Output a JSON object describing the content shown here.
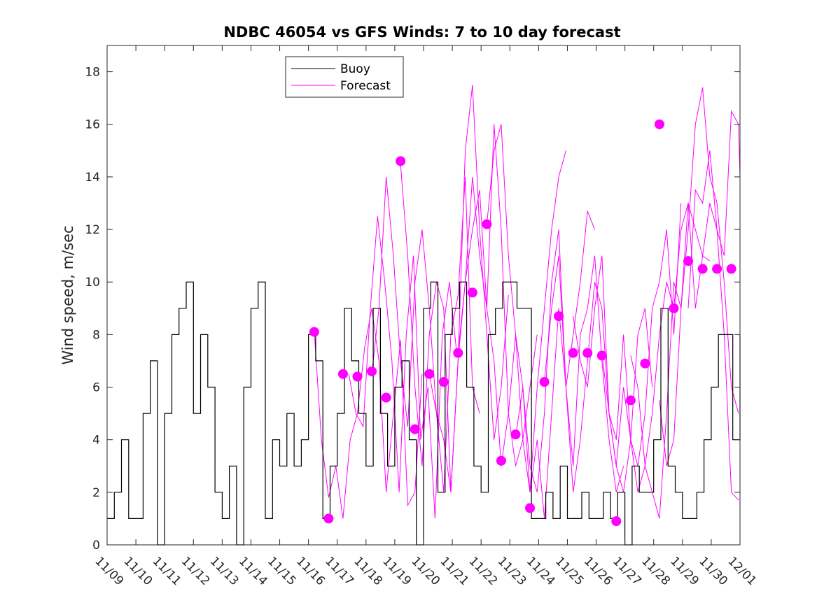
{
  "chart_data": {
    "type": "line",
    "title": "NDBC 46054 vs GFS Winds: 7 to 10 day forecast",
    "xlabel": "",
    "ylabel": "Wind speed, m/sec",
    "xlim": [
      0,
      22
    ],
    "ylim": [
      0,
      19
    ],
    "grid": false,
    "legend_position": "top-left",
    "x_tick_values": [
      0,
      1,
      2,
      3,
      4,
      5,
      6,
      7,
      8,
      9,
      10,
      11,
      12,
      13,
      14,
      15,
      16,
      17,
      18,
      19,
      20,
      21,
      22
    ],
    "x_tick_labels": [
      "11/09",
      "11/10",
      "11/11",
      "11/12",
      "11/13",
      "11/14",
      "11/15",
      "11/16",
      "11/17",
      "11/18",
      "11/19",
      "11/20",
      "11/21",
      "11/22",
      "11/23",
      "11/24",
      "11/25",
      "11/26",
      "11/27",
      "11/28",
      "11/29",
      "11/30",
      "12/01"
    ],
    "y_ticks": [
      0,
      2,
      4,
      6,
      8,
      10,
      12,
      14,
      16,
      18
    ],
    "x_unit": "days since 11/09 00:00",
    "series": [
      {
        "name": "Buoy",
        "color": "#000000",
        "style": "line",
        "x": [
          0,
          0.25,
          0.5,
          0.75,
          1,
          1.25,
          1.5,
          1.75,
          2,
          2.25,
          2.5,
          2.75,
          3,
          3.25,
          3.5,
          3.75,
          4,
          4.25,
          4.5,
          4.75,
          5,
          5.25,
          5.5,
          5.75,
          6,
          6.25,
          6.5,
          6.75,
          7,
          7.25,
          7.5,
          7.75,
          8,
          8.25,
          8.5,
          8.75,
          9,
          9.25,
          9.5,
          9.75,
          10,
          10.25,
          10.5,
          10.75,
          11,
          11.25,
          11.5,
          11.75,
          12,
          12.25,
          12.5,
          12.75,
          13,
          13.25,
          13.5,
          13.75,
          14,
          14.25,
          14.5,
          14.75,
          15,
          15.25,
          15.5,
          15.75,
          16,
          16.25,
          16.5,
          16.75,
          17,
          17.25,
          17.5,
          17.75,
          18,
          18.25,
          18.5,
          18.75,
          19,
          19.25,
          19.5,
          19.75,
          20,
          20.25,
          20.5,
          20.75,
          21,
          21.25,
          21.5,
          21.75,
          22
        ],
        "values": [
          1,
          2,
          4,
          1,
          1,
          5,
          7,
          0,
          5,
          8,
          9,
          10,
          5,
          8,
          6,
          2,
          1,
          3,
          0,
          6,
          9,
          10,
          1,
          4,
          3,
          5,
          3,
          4,
          8,
          7,
          1,
          3,
          5,
          9,
          7,
          5,
          3,
          9,
          5,
          3,
          6,
          7,
          4,
          0,
          9,
          10,
          2,
          8,
          9,
          10,
          6,
          3,
          2,
          8,
          9,
          10,
          10,
          9,
          9,
          1,
          1,
          2,
          1,
          3,
          1,
          1,
          2,
          1,
          1,
          2,
          1,
          2,
          0,
          3,
          2,
          2,
          4,
          9,
          3,
          2,
          1,
          1,
          2,
          4,
          6,
          8,
          8,
          4,
          8
        ]
      },
      {
        "name": "Forecast",
        "color": "#ff00ff",
        "style": "line",
        "runs": [
          {
            "x": [
              7.2,
              7.45,
              7.7,
              7.95,
              8.2,
              8.45,
              8.7,
              8.95,
              9.2,
              9.45,
              9.7,
              9.95,
              10.2,
              10.45,
              10.7,
              10.95
            ],
            "values": [
              8.1,
              4,
              1.8,
              3,
              1,
              4,
              5,
              7.5,
              9,
              7,
              2,
              5,
              7.8,
              1.5,
              2,
              6.5
            ]
          },
          {
            "x": [
              8.4,
              8.65,
              8.9,
              9.15,
              9.4,
              9.65,
              9.9,
              10.15,
              10.4,
              10.65,
              10.9,
              11.15,
              11.4,
              11.65,
              11.9,
              12.15
            ],
            "values": [
              6.5,
              5,
              4.5,
              9,
              12.5,
              10,
              7,
              2,
              8,
              11,
              4,
              6,
              1,
              8,
              10,
              7.3
            ]
          },
          {
            "x": [
              9.2,
              9.45,
              9.7,
              9.95,
              10.2,
              10.45,
              10.7,
              10.95,
              11.2,
              11.45,
              11.7,
              11.95,
              12.2,
              12.45,
              12.7,
              12.95
            ],
            "values": [
              6.5,
              9,
              14,
              11,
              7,
              4.5,
              10,
              12,
              9,
              5,
              2,
              8,
              9.5,
              14,
              6,
              5
            ]
          },
          {
            "x": [
              10.2,
              10.45,
              10.7,
              10.95,
              11.2,
              11.45,
              11.7,
              11.95,
              12.2,
              12.45,
              12.7,
              12.95,
              13.2,
              13.45,
              13.7,
              13.95
            ],
            "values": [
              14.5,
              11,
              6,
              3,
              8,
              10,
              9,
              2,
              7,
              15,
              17.5,
              12,
              8,
              4,
              6,
              9.5
            ]
          },
          {
            "x": [
              11.2,
              11.45,
              11.7,
              11.95,
              12.2,
              12.45,
              12.7,
              12.95,
              13.2,
              13.45,
              13.7,
              13.95,
              14.2,
              14.45,
              14.7,
              14.95
            ],
            "values": [
              6.5,
              5,
              4,
              2,
              7,
              10,
              14,
              11,
              9,
              16,
              12,
              5,
              3,
              4,
              6,
              8
            ]
          },
          {
            "x": [
              12.2,
              12.45,
              12.7,
              12.95,
              13.2,
              13.45,
              13.7,
              13.95,
              14.2,
              14.45,
              14.7,
              14.95,
              15.2,
              15.45,
              15.7,
              15.95
            ],
            "values": [
              7.3,
              10,
              12,
              13.5,
              9,
              7,
              3,
              5,
              8,
              4,
              2,
              6,
              9,
              12,
              14,
              15
            ]
          },
          {
            "x": [
              13.2,
              13.45,
              13.7,
              13.95,
              14.2,
              14.45,
              14.7,
              14.95,
              15.2,
              15.45,
              15.7,
              15.95,
              16.2,
              16.45,
              16.7,
              16.95
            ],
            "values": [
              12.2,
              15,
              16,
              11,
              8,
              6,
              2,
              4,
              1,
              5,
              9,
              6,
              8,
              10,
              12.7,
              12
            ]
          },
          {
            "x": [
              14.2,
              14.45,
              14.7,
              14.95,
              15.2,
              15.45,
              15.7,
              15.95,
              16.2,
              16.45,
              16.7,
              16.95,
              17.2,
              17.45,
              17.7,
              17.95
            ],
            "values": [
              4.1,
              6,
              3,
              2,
              5,
              10,
              12,
              6,
              3,
              8,
              9,
              11,
              7,
              4,
              2,
              3
            ]
          },
          {
            "x": [
              15.2,
              15.45,
              15.7,
              15.95,
              16.2,
              16.45,
              16.7,
              16.95,
              17.2,
              17.45,
              17.7,
              17.95,
              18.2,
              18.45,
              18.7,
              18.95
            ],
            "values": [
              6.2,
              9,
              11,
              6,
              2,
              4,
              7,
              10,
              9,
              5,
              3,
              2,
              4,
              8,
              9,
              6
            ]
          },
          {
            "x": [
              16.2,
              16.45,
              16.7,
              16.95,
              17.2,
              17.45,
              17.7,
              17.95,
              18.2,
              18.45,
              18.7,
              18.95,
              19.2,
              19.45,
              19.7,
              19.95
            ],
            "values": [
              8.7,
              7,
              6,
              9,
              11,
              5,
              4,
              8,
              4,
              3,
              5,
              9,
              10,
              12,
              8,
              13
            ]
          },
          {
            "x": [
              17.2,
              17.45,
              17.7,
              17.95,
              18.2,
              18.45,
              18.7,
              18.95,
              19.2,
              19.45,
              19.7,
              19.95,
              20.2,
              20.45,
              20.7,
              20.95
            ],
            "values": [
              7.3,
              5,
              3,
              6,
              4,
              2,
              3,
              5,
              8,
              10,
              9,
              12,
              13,
              12,
              11,
              10.8
            ]
          },
          {
            "x": [
              18.2,
              18.45,
              18.7,
              18.95,
              19.2,
              19.45,
              19.7,
              19.95,
              20.2,
              20.45,
              20.7,
              20.95,
              21.2,
              21.45,
              21.7,
              21.95
            ],
            "values": [
              7.2,
              6,
              3,
              2,
              1,
              5,
              10,
              9,
              12,
              16,
              17.4,
              14,
              13,
              10,
              6,
              5
            ]
          },
          {
            "x": [
              19.2,
              19.45,
              19.7,
              19.95,
              20.2,
              20.45,
              20.7,
              20.95,
              21.2,
              21.45,
              21.7,
              21.95
            ],
            "values": [
              5.5,
              3,
              4,
              9,
              13,
              9,
              11,
              13,
              12,
              8,
              2,
              1.7
            ]
          },
          {
            "x": [
              20.2,
              20.45,
              20.7,
              20.95,
              21.2,
              21.45,
              21.7,
              21.95,
              22.0
            ],
            "values": [
              9,
              13.5,
              13,
              15,
              12,
              11,
              16.5,
              16,
              14
            ]
          }
        ],
        "markers": {
          "x": [
            7.2,
            7.7,
            8.2,
            8.7,
            9.2,
            9.7,
            10.2,
            10.7,
            11.2,
            11.7,
            12.2,
            12.7,
            13.2,
            13.7,
            14.2,
            14.7,
            15.2,
            15.7,
            16.2,
            16.7,
            17.2,
            17.7,
            18.2,
            18.7,
            19.2,
            19.7,
            20.2,
            20.7,
            21.2,
            21.7
          ],
          "values": [
            8.1,
            1.0,
            6.5,
            6.4,
            6.6,
            5.6,
            14.6,
            4.4,
            6.5,
            6.2,
            7.3,
            9.6,
            12.2,
            3.2,
            4.2,
            1.4,
            6.2,
            8.7,
            7.3,
            7.3,
            7.2,
            0.9,
            5.5,
            6.9,
            16.0,
            9.0,
            10.8,
            10.5,
            10.5,
            10.5
          ]
        }
      }
    ]
  }
}
